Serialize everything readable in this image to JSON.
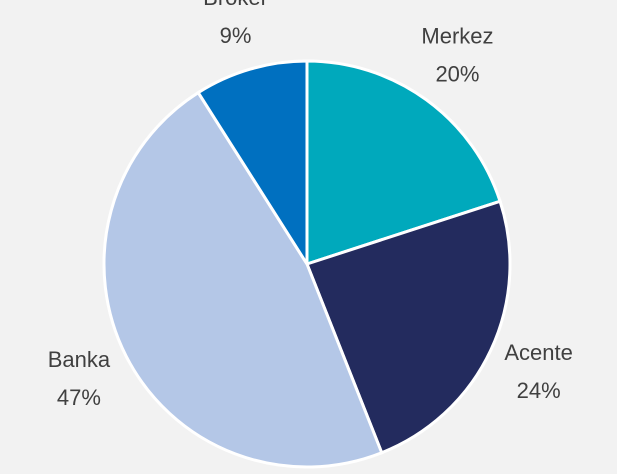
{
  "chart_data": {
    "type": "pie",
    "categories": [
      "Merkez",
      "Acente",
      "Banka",
      "Broker"
    ],
    "values": [
      20,
      24,
      47,
      9
    ],
    "value_labels": [
      "20%",
      "24%",
      "47%",
      "9%"
    ],
    "colors": [
      "#00a9bc",
      "#232b5e",
      "#b4c7e7",
      "#0070c0"
    ]
  }
}
